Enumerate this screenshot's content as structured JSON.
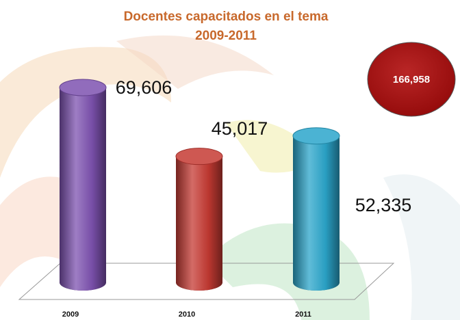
{
  "chart_data": {
    "type": "bar3d",
    "title": "Docentes capacitados  en el tema",
    "subtitle": "2009-2011",
    "categories": [
      "2009",
      "2010",
      "2011"
    ],
    "values": [
      69606,
      45017,
      52335
    ],
    "value_labels": [
      "69,606",
      "45,017",
      "52,335"
    ],
    "colors": [
      "#7d52b0",
      "#c53a33",
      "#2ba6cb"
    ],
    "total": {
      "value": 166958,
      "label": "166,958"
    },
    "total_color": "#b10e0e"
  }
}
